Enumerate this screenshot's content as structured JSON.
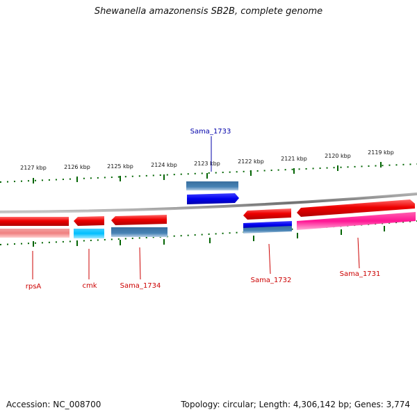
{
  "title": "Shewanella amazonensis SB2B, complete genome",
  "footer": {
    "accession": "Accession: NC_008700",
    "summary": "Topology: circular; Length: 4,306,142 bp; Genes: 3,774"
  },
  "scale": {
    "unit": "kbp",
    "ticks": [
      {
        "label": "2127 kbp",
        "kbp": 2127
      },
      {
        "label": "2126 kbp",
        "kbp": 2126
      },
      {
        "label": "2125 kbp",
        "kbp": 2125
      },
      {
        "label": "2124 kbp",
        "kbp": 2124
      },
      {
        "label": "2123 kbp",
        "kbp": 2123
      },
      {
        "label": "2122 kbp",
        "kbp": 2122
      },
      {
        "label": "2121 kbp",
        "kbp": 2121
      },
      {
        "label": "2120 kbp",
        "kbp": 2120
      },
      {
        "label": "2119 kbp",
        "kbp": 2119
      }
    ]
  },
  "genes": [
    {
      "label": "rpsA",
      "color": "#cc0000"
    },
    {
      "label": "cmk",
      "color": "#cc0000"
    },
    {
      "label": "Sama_1734",
      "color": "#cc0000"
    },
    {
      "label": "Sama_1733",
      "color": "#0000aa"
    },
    {
      "label": "Sama_1732",
      "color": "#cc0000"
    },
    {
      "label": "Sama_1731",
      "color": "#cc0000"
    }
  ],
  "colors": {
    "gene_red": "#ee0000",
    "gene_blue": "#0000ee",
    "cds_pink": "#f08080",
    "cds_cyan": "#00bfff",
    "cds_steel": "#4682b4",
    "cds_magenta": "#ff1493",
    "backbone": "#808080",
    "tick_green": "#006400"
  }
}
